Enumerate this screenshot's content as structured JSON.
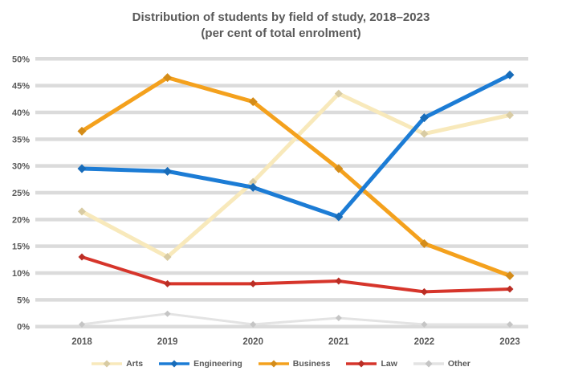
{
  "title": {
    "line1": "Distribution of students by field of study, 2018–2023",
    "line2": "(per cent of total enrolment)"
  },
  "colors": {
    "grid": "#dbdbdb",
    "text": "#595959",
    "background": "#ffffff"
  },
  "chart_data": {
    "type": "line",
    "categories": [
      "2018",
      "2019",
      "2020",
      "2021",
      "2022",
      "2023"
    ],
    "series": [
      {
        "name": "Arts",
        "color": "#f8e9bb",
        "values": [
          21.5,
          13,
          27,
          43.5,
          36,
          39.5
        ]
      },
      {
        "name": "Engineering",
        "color": "#1c7cd5",
        "values": [
          29.5,
          29,
          26,
          20.5,
          39,
          47
        ]
      },
      {
        "name": "Business",
        "color": "#f4a11d",
        "values": [
          36.5,
          46.5,
          42,
          29.5,
          15.5,
          9.5
        ]
      },
      {
        "name": "Law",
        "color": "#d6352b",
        "values": [
          13,
          8,
          8,
          8.5,
          6.5,
          7
        ]
      },
      {
        "name": "Other",
        "color": "#e3e3e3",
        "values": [
          0.4,
          2.4,
          0.4,
          1.6,
          0.4,
          0.4
        ]
      }
    ],
    "title": "Distribution of students by field of study, 2018–2023 (per cent of total enrolment)",
    "xlabel": "",
    "ylabel": "",
    "ylim": [
      0,
      50
    ],
    "ytick_step": 5,
    "ytick_suffix": "%",
    "grid": true,
    "legend_position": "bottom",
    "marker": "diamond"
  }
}
